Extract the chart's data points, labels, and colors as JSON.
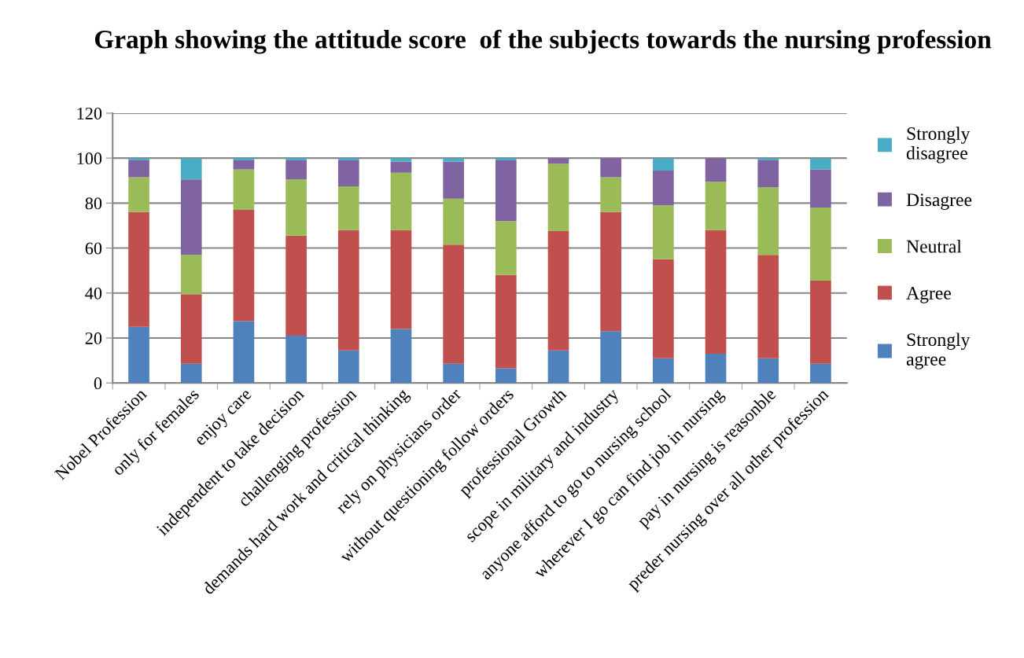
{
  "chart_data": {
    "type": "bar",
    "stacked": true,
    "title": "Graph showing the attitude score  of the subjects towards the nursing profession",
    "categories": [
      "Nobel Profession",
      "only for females",
      "enjoy care",
      "independent to take decision",
      "challenging profession",
      "demands hard work and critical thinking",
      "rely on physicians order",
      "without questioning follow orders",
      "professional Growth",
      "scope in military and industry",
      "anyone afford to go to nursing school",
      "wherever I go can find job in nursing",
      "pay in nursing is reasonble",
      "preder nursing over all other profession"
    ],
    "series": [
      {
        "name": "Strongly agree",
        "color": "#4f81bd",
        "values": [
          25,
          8.5,
          27.5,
          21,
          14.5,
          24,
          8.5,
          6.5,
          14.5,
          23,
          11,
          13,
          11,
          8.5
        ]
      },
      {
        "name": "Agree",
        "color": "#c0504d",
        "values": [
          51,
          31,
          49.5,
          44.5,
          53.5,
          44,
          53,
          41.5,
          53,
          53,
          44,
          55,
          46,
          37
        ]
      },
      {
        "name": "Neutral",
        "color": "#9bbb59",
        "values": [
          15.5,
          17.5,
          18,
          25,
          19.5,
          25.5,
          20.5,
          24,
          30,
          15.5,
          24,
          21.5,
          30,
          32.5
        ]
      },
      {
        "name": "Disagree",
        "color": "#8064a2",
        "values": [
          7.5,
          33.5,
          4,
          8.5,
          11.5,
          5,
          16.5,
          27,
          2.5,
          8.5,
          15.5,
          10.5,
          12,
          17
        ]
      },
      {
        "name": "Strongly disagree",
        "color": "#4bacc6",
        "values": [
          1,
          9.5,
          1,
          1,
          1,
          1.5,
          1.5,
          1,
          0,
          0,
          5.5,
          0,
          1,
          5
        ]
      }
    ],
    "ylim": [
      0,
      120
    ],
    "yticks": [
      0,
      20,
      40,
      60,
      80,
      100,
      120
    ],
    "grid": "y",
    "legend": "right"
  }
}
